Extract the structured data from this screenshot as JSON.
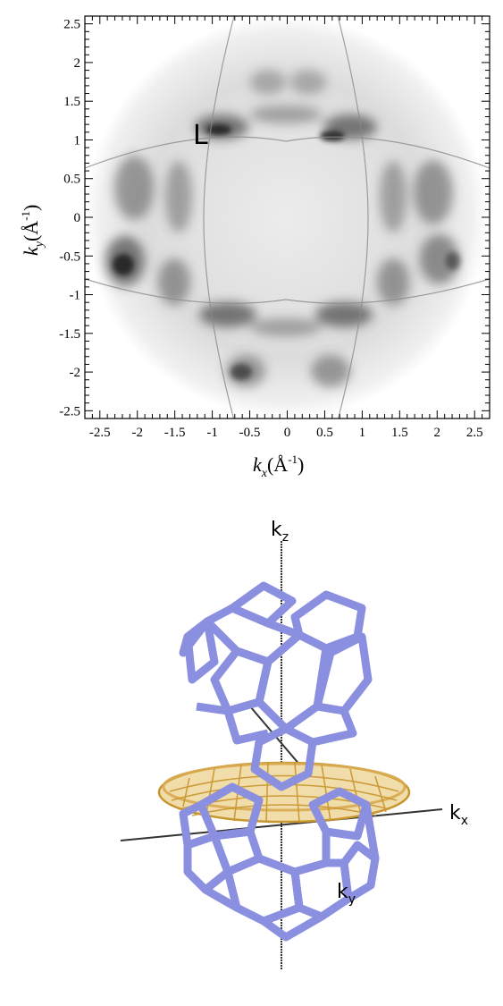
{
  "top_panel": {
    "x_ticks": [
      "-2.5",
      "-2",
      "-1.5",
      "-1",
      "-0.5",
      "0",
      "0.5",
      "1",
      "1.5",
      "2",
      "2.5"
    ],
    "y_ticks": [
      "2.5",
      "2",
      "1.5",
      "1",
      "0.5",
      "0",
      "-0.5",
      "-1",
      "-1.5",
      "-2",
      "-2.5"
    ],
    "xlim": [
      -2.7,
      2.7
    ],
    "ylim": [
      -2.6,
      2.6
    ],
    "x_label": {
      "main": "k",
      "sub": "x",
      "unit": "(Å",
      "exp": "-1",
      "close": ")"
    },
    "y_label": {
      "main": "k",
      "sub": "y",
      "unit": "(Å",
      "exp": "-1",
      "close": ")"
    },
    "point_label": "L",
    "colormap": "grayscale intensity map"
  },
  "bottom_panel": {
    "kz_label": {
      "main": "k",
      "sub": "z"
    },
    "kx_label": {
      "main": "k",
      "sub": "x"
    },
    "ky_label": {
      "main": "k",
      "sub": "y"
    },
    "colors": {
      "brillouin_zone": "#8a8fe0",
      "fermi_surface": "#d8aa50",
      "axes": "#333333"
    }
  }
}
